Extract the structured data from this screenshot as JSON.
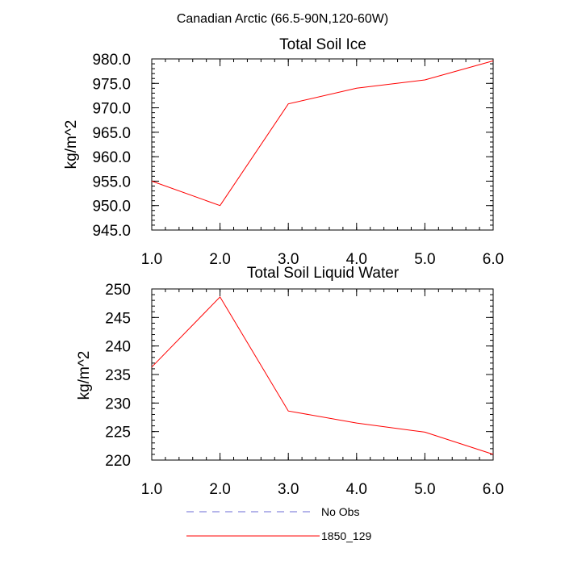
{
  "suptitle": "Canadian Arctic (66.5-90N,120-60W)",
  "colors": {
    "series": "#ff0000",
    "obs": "#6b6bd6",
    "axis": "#000000"
  },
  "legend": [
    {
      "label": "No Obs",
      "style": "dashed",
      "color": "#6b6bd6"
    },
    {
      "label": "1850_129",
      "style": "solid",
      "color": "#ff0000"
    }
  ],
  "chart_data": [
    {
      "type": "line",
      "title": "Total Soil Ice",
      "xlabel": "",
      "ylabel": "kg/m^2",
      "xlim": [
        1,
        6
      ],
      "ylim": [
        945,
        980
      ],
      "xticks": [
        1,
        2,
        3,
        4,
        5,
        6
      ],
      "xtick_labels": [
        "1.0",
        "2.0",
        "3.0",
        "4.0",
        "5.0",
        "6.0"
      ],
      "yticks": [
        945,
        950,
        955,
        960,
        965,
        970,
        975,
        980
      ],
      "ytick_labels": [
        "945.0",
        "950.0",
        "955.0",
        "960.0",
        "965.0",
        "970.0",
        "975.0",
        "980.0"
      ],
      "series": [
        {
          "name": "1850_129",
          "x": [
            1,
            2,
            3,
            4,
            5,
            6
          ],
          "values": [
            955.0,
            950.0,
            970.8,
            974.0,
            975.7,
            979.6
          ]
        }
      ]
    },
    {
      "type": "line",
      "title": "Total Soil Liquid Water",
      "xlabel": "",
      "ylabel": "kg/m^2",
      "xlim": [
        1,
        6
      ],
      "ylim": [
        220,
        250
      ],
      "xticks": [
        1,
        2,
        3,
        4,
        5,
        6
      ],
      "xtick_labels": [
        "1.0",
        "2.0",
        "3.0",
        "4.0",
        "5.0",
        "6.0"
      ],
      "yticks": [
        220,
        225,
        230,
        235,
        240,
        245,
        250
      ],
      "ytick_labels": [
        "220",
        "225",
        "230",
        "235",
        "240",
        "245",
        "250"
      ],
      "series": [
        {
          "name": "1850_129",
          "x": [
            1,
            2,
            3,
            4,
            5,
            6
          ],
          "values": [
            236.3,
            248.6,
            228.6,
            226.5,
            224.9,
            221.0
          ]
        }
      ]
    }
  ]
}
